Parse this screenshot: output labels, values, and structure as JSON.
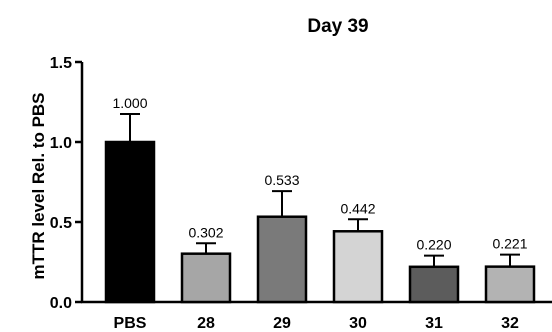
{
  "chart_data": {
    "type": "bar",
    "title": "Day 39",
    "xlabel": "",
    "ylabel": "mTTR level Rel. to PBS",
    "ylim": [
      0,
      1.5
    ],
    "yticks": [
      "0.0",
      "0.5",
      "1.0",
      "1.5"
    ],
    "grid": false,
    "categories": [
      "PBS",
      "28",
      "29",
      "30",
      "31",
      "32"
    ],
    "values": [
      1.0,
      0.302,
      0.533,
      0.442,
      0.22,
      0.221
    ],
    "error_upper": [
      0.175,
      0.065,
      0.16,
      0.075,
      0.07,
      0.075
    ],
    "data_labels": [
      "1.000",
      "0.302",
      "0.533",
      "0.442",
      "0.220",
      "0.221"
    ],
    "bar_colors": [
      "#000000",
      "#a6a6a6",
      "#7a7a7a",
      "#d4d4d4",
      "#5c5c5c",
      "#b3b3b3"
    ]
  }
}
